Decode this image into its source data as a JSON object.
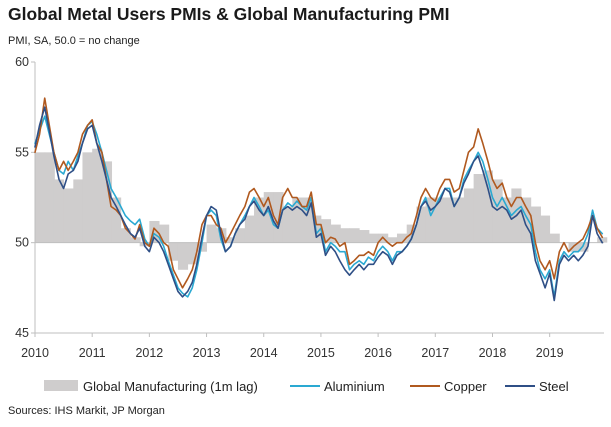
{
  "colors": {
    "manufacturing": "#cfcdcd",
    "aluminium": "#2aa9d2",
    "copper": "#b0591f",
    "steel": "#2f4f86",
    "axis": "#bfbfbf"
  },
  "chart_data": {
    "type": "line",
    "title": "Global Metal Users PMIs & Global Manufacturing PMI",
    "subtitle": "PMI, SA, 50.0 = no change",
    "source": "Sources: IHS Markit, JP Morgan",
    "xlabel": "",
    "ylabel": "",
    "xlim": [
      2010.0,
      2019.95
    ],
    "ylim": [
      45,
      60
    ],
    "baseline": 50,
    "yticks": [
      45,
      50,
      55,
      60
    ],
    "xticks": [
      "2010",
      "2011",
      "2012",
      "2013",
      "2014",
      "2015",
      "2016",
      "2017",
      "2018",
      "2019"
    ],
    "grid": false,
    "legend_position": "bottom",
    "series": [
      {
        "name": "Global Manufacturing (1m lag)",
        "kind": "bar",
        "x": [
          2010.0,
          2010.17,
          2010.33,
          2010.5,
          2010.67,
          2010.83,
          2011.0,
          2011.17,
          2011.33,
          2011.5,
          2011.67,
          2011.83,
          2012.0,
          2012.17,
          2012.33,
          2012.5,
          2012.67,
          2012.83,
          2013.0,
          2013.17,
          2013.33,
          2013.5,
          2013.67,
          2013.83,
          2014.0,
          2014.17,
          2014.33,
          2014.5,
          2014.67,
          2014.83,
          2015.0,
          2015.17,
          2015.33,
          2015.5,
          2015.67,
          2015.83,
          2016.0,
          2016.17,
          2016.33,
          2016.5,
          2016.67,
          2016.83,
          2017.0,
          2017.17,
          2017.33,
          2017.5,
          2017.67,
          2017.83,
          2018.0,
          2018.17,
          2018.33,
          2018.5,
          2018.67,
          2018.83,
          2019.0,
          2019.17,
          2019.33,
          2019.5,
          2019.67,
          2019.83
        ],
        "values": [
          55.0,
          55.0,
          53.5,
          53.0,
          53.5,
          55.0,
          55.2,
          54.5,
          52.5,
          50.8,
          50.3,
          49.8,
          51.2,
          51.0,
          49.0,
          48.5,
          48.8,
          49.5,
          51.0,
          50.8,
          50.3,
          50.8,
          51.5,
          52.5,
          52.8,
          52.8,
          52.0,
          52.5,
          52.5,
          51.5,
          51.3,
          51.0,
          50.8,
          50.8,
          50.7,
          50.5,
          50.5,
          50.3,
          50.5,
          51.0,
          52.0,
          52.5,
          52.5,
          52.5,
          52.5,
          53.0,
          53.8,
          54.0,
          53.5,
          52.5,
          53.0,
          52.5,
          52.0,
          51.5,
          50.5,
          50.0,
          49.5,
          49.5,
          50.0,
          50.3
        ]
      },
      {
        "name": "Aluminium",
        "kind": "line",
        "x": [
          2010.0,
          2010.08,
          2010.17,
          2010.25,
          2010.33,
          2010.42,
          2010.5,
          2010.58,
          2010.67,
          2010.75,
          2010.83,
          2010.92,
          2011.0,
          2011.08,
          2011.17,
          2011.25,
          2011.33,
          2011.42,
          2011.5,
          2011.58,
          2011.67,
          2011.75,
          2011.83,
          2011.92,
          2012.0,
          2012.08,
          2012.17,
          2012.25,
          2012.33,
          2012.42,
          2012.5,
          2012.58,
          2012.67,
          2012.75,
          2012.83,
          2012.92,
          2013.0,
          2013.08,
          2013.17,
          2013.25,
          2013.33,
          2013.42,
          2013.5,
          2013.58,
          2013.67,
          2013.75,
          2013.83,
          2013.92,
          2014.0,
          2014.08,
          2014.17,
          2014.25,
          2014.33,
          2014.42,
          2014.5,
          2014.58,
          2014.67,
          2014.75,
          2014.83,
          2014.92,
          2015.0,
          2015.08,
          2015.17,
          2015.25,
          2015.33,
          2015.42,
          2015.5,
          2015.58,
          2015.67,
          2015.75,
          2015.83,
          2015.92,
          2016.0,
          2016.08,
          2016.17,
          2016.25,
          2016.33,
          2016.42,
          2016.5,
          2016.58,
          2016.67,
          2016.75,
          2016.83,
          2016.92,
          2017.0,
          2017.08,
          2017.17,
          2017.25,
          2017.33,
          2017.42,
          2017.5,
          2017.58,
          2017.67,
          2017.75,
          2017.83,
          2017.92,
          2018.0,
          2018.08,
          2018.17,
          2018.25,
          2018.33,
          2018.42,
          2018.5,
          2018.58,
          2018.67,
          2018.75,
          2018.83,
          2018.92,
          2019.0,
          2019.08,
          2019.17,
          2019.25,
          2019.33,
          2019.42,
          2019.5,
          2019.58,
          2019.67,
          2019.75,
          2019.83,
          2019.92
        ],
        "values": [
          55.5,
          56.2,
          57.0,
          56.0,
          55.0,
          54.0,
          53.8,
          54.5,
          54.0,
          54.8,
          55.5,
          56.5,
          56.7,
          56.0,
          55.0,
          54.0,
          53.0,
          52.5,
          52.0,
          51.5,
          51.2,
          51.0,
          51.3,
          50.2,
          49.8,
          50.5,
          50.3,
          49.8,
          49.0,
          48.2,
          47.5,
          47.2,
          47.0,
          47.5,
          48.5,
          50.0,
          51.5,
          51.8,
          51.5,
          50.2,
          49.5,
          49.8,
          50.5,
          51.0,
          51.5,
          52.0,
          52.5,
          52.0,
          51.5,
          51.8,
          51.0,
          50.8,
          51.8,
          52.2,
          52.0,
          52.3,
          52.0,
          51.8,
          52.5,
          50.5,
          50.8,
          49.5,
          50.0,
          49.8,
          49.5,
          49.5,
          48.5,
          48.8,
          49.0,
          48.8,
          49.2,
          49.0,
          49.5,
          49.8,
          49.5,
          49.0,
          49.5,
          49.5,
          49.8,
          50.2,
          51.0,
          52.0,
          52.5,
          51.5,
          52.0,
          52.5,
          53.0,
          53.0,
          52.0,
          52.5,
          53.5,
          54.0,
          54.5,
          55.0,
          54.5,
          53.5,
          52.5,
          52.0,
          52.5,
          52.0,
          51.5,
          51.8,
          52.0,
          51.5,
          51.0,
          49.5,
          48.5,
          48.0,
          48.5,
          47.0,
          49.0,
          49.5,
          49.2,
          49.5,
          49.5,
          49.8,
          50.5,
          51.8,
          50.8,
          50.5
        ]
      },
      {
        "name": "Copper",
        "kind": "line",
        "x": [
          2010.0,
          2010.08,
          2010.17,
          2010.25,
          2010.33,
          2010.42,
          2010.5,
          2010.58,
          2010.67,
          2010.75,
          2010.83,
          2010.92,
          2011.0,
          2011.08,
          2011.17,
          2011.25,
          2011.33,
          2011.42,
          2011.5,
          2011.58,
          2011.67,
          2011.75,
          2011.83,
          2011.92,
          2012.0,
          2012.08,
          2012.17,
          2012.25,
          2012.33,
          2012.42,
          2012.5,
          2012.58,
          2012.67,
          2012.75,
          2012.83,
          2012.92,
          2013.0,
          2013.08,
          2013.17,
          2013.25,
          2013.33,
          2013.42,
          2013.5,
          2013.58,
          2013.67,
          2013.75,
          2013.83,
          2013.92,
          2014.0,
          2014.08,
          2014.17,
          2014.25,
          2014.33,
          2014.42,
          2014.5,
          2014.58,
          2014.67,
          2014.75,
          2014.83,
          2014.92,
          2015.0,
          2015.08,
          2015.17,
          2015.25,
          2015.33,
          2015.42,
          2015.5,
          2015.58,
          2015.67,
          2015.75,
          2015.83,
          2015.92,
          2016.0,
          2016.08,
          2016.17,
          2016.25,
          2016.33,
          2016.42,
          2016.5,
          2016.58,
          2016.67,
          2016.75,
          2016.83,
          2016.92,
          2017.0,
          2017.08,
          2017.17,
          2017.25,
          2017.33,
          2017.42,
          2017.5,
          2017.58,
          2017.67,
          2017.75,
          2017.83,
          2017.92,
          2018.0,
          2018.08,
          2018.17,
          2018.25,
          2018.33,
          2018.42,
          2018.5,
          2018.58,
          2018.67,
          2018.75,
          2018.83,
          2018.92,
          2019.0,
          2019.08,
          2019.17,
          2019.25,
          2019.33,
          2019.42,
          2019.5,
          2019.58,
          2019.67,
          2019.75,
          2019.83,
          2019.92
        ],
        "values": [
          55.0,
          56.0,
          58.0,
          56.5,
          55.0,
          54.0,
          54.5,
          54.0,
          54.5,
          55.0,
          56.0,
          56.5,
          56.8,
          55.5,
          55.0,
          53.5,
          52.0,
          51.8,
          51.5,
          50.8,
          50.5,
          50.2,
          51.0,
          50.0,
          49.8,
          50.8,
          50.5,
          50.0,
          49.8,
          48.5,
          48.0,
          47.5,
          48.0,
          48.5,
          49.5,
          51.0,
          51.5,
          51.5,
          51.0,
          50.8,
          50.0,
          50.5,
          51.0,
          51.5,
          52.0,
          52.8,
          53.0,
          52.5,
          52.0,
          52.5,
          51.5,
          51.0,
          52.5,
          53.0,
          52.5,
          52.5,
          52.0,
          52.0,
          52.8,
          51.0,
          51.0,
          50.0,
          50.3,
          50.2,
          49.8,
          50.0,
          48.8,
          49.0,
          49.3,
          49.3,
          49.5,
          49.3,
          50.0,
          50.3,
          50.0,
          49.8,
          50.0,
          50.0,
          50.3,
          50.5,
          51.5,
          52.5,
          53.0,
          52.5,
          52.3,
          53.0,
          53.5,
          53.5,
          52.8,
          53.0,
          54.0,
          55.0,
          55.3,
          56.3,
          55.5,
          54.5,
          53.5,
          53.0,
          53.3,
          52.5,
          52.0,
          52.5,
          52.5,
          52.0,
          51.5,
          50.0,
          49.0,
          48.5,
          49.0,
          48.0,
          49.5,
          50.0,
          49.5,
          49.8,
          50.0,
          50.2,
          50.8,
          51.5,
          50.8,
          50.3
        ]
      },
      {
        "name": "Steel",
        "kind": "line",
        "x": [
          2010.0,
          2010.08,
          2010.17,
          2010.25,
          2010.33,
          2010.42,
          2010.5,
          2010.58,
          2010.67,
          2010.75,
          2010.83,
          2010.92,
          2011.0,
          2011.08,
          2011.17,
          2011.25,
          2011.33,
          2011.42,
          2011.5,
          2011.58,
          2011.67,
          2011.75,
          2011.83,
          2011.92,
          2012.0,
          2012.08,
          2012.17,
          2012.25,
          2012.33,
          2012.42,
          2012.5,
          2012.58,
          2012.67,
          2012.75,
          2012.83,
          2012.92,
          2013.0,
          2013.08,
          2013.17,
          2013.25,
          2013.33,
          2013.42,
          2013.5,
          2013.58,
          2013.67,
          2013.75,
          2013.83,
          2013.92,
          2014.0,
          2014.08,
          2014.17,
          2014.25,
          2014.33,
          2014.42,
          2014.5,
          2014.58,
          2014.67,
          2014.75,
          2014.83,
          2014.92,
          2015.0,
          2015.08,
          2015.17,
          2015.25,
          2015.33,
          2015.42,
          2015.5,
          2015.58,
          2015.67,
          2015.75,
          2015.83,
          2015.92,
          2016.0,
          2016.08,
          2016.17,
          2016.25,
          2016.33,
          2016.42,
          2016.5,
          2016.58,
          2016.67,
          2016.75,
          2016.83,
          2016.92,
          2017.0,
          2017.08,
          2017.17,
          2017.25,
          2017.33,
          2017.42,
          2017.5,
          2017.58,
          2017.67,
          2017.75,
          2017.83,
          2017.92,
          2018.0,
          2018.08,
          2018.17,
          2018.25,
          2018.33,
          2018.42,
          2018.5,
          2018.58,
          2018.67,
          2018.75,
          2018.83,
          2018.92,
          2019.0,
          2019.08,
          2019.17,
          2019.25,
          2019.33,
          2019.42,
          2019.5,
          2019.58,
          2019.67,
          2019.75,
          2019.83,
          2019.92
        ],
        "values": [
          55.3,
          56.5,
          57.5,
          56.2,
          54.8,
          53.5,
          53.0,
          53.8,
          54.0,
          54.5,
          55.5,
          56.3,
          56.5,
          55.5,
          54.5,
          53.5,
          52.5,
          52.0,
          51.5,
          51.0,
          50.5,
          50.3,
          50.8,
          49.8,
          49.5,
          50.3,
          50.0,
          49.5,
          48.8,
          48.0,
          47.3,
          47.0,
          47.3,
          47.8,
          48.8,
          50.3,
          51.5,
          52.0,
          51.8,
          50.5,
          49.5,
          49.8,
          50.5,
          51.0,
          51.3,
          52.0,
          52.3,
          51.8,
          51.5,
          52.0,
          51.2,
          50.8,
          51.8,
          52.0,
          51.8,
          52.0,
          51.8,
          51.5,
          52.2,
          50.3,
          50.5,
          49.3,
          49.8,
          49.5,
          49.0,
          48.5,
          48.2,
          48.5,
          48.8,
          48.5,
          48.8,
          48.8,
          49.2,
          49.5,
          49.3,
          48.8,
          49.3,
          49.5,
          49.8,
          50.2,
          51.0,
          52.0,
          52.3,
          51.8,
          52.0,
          52.3,
          53.0,
          52.8,
          52.0,
          52.5,
          53.3,
          53.8,
          54.5,
          54.8,
          54.0,
          53.0,
          52.0,
          51.8,
          52.0,
          51.8,
          51.3,
          51.5,
          51.8,
          51.0,
          50.5,
          49.0,
          48.3,
          47.5,
          48.3,
          46.8,
          48.8,
          49.3,
          49.0,
          49.3,
          49.0,
          49.3,
          49.8,
          51.5,
          50.5,
          50.0
        ]
      }
    ]
  }
}
